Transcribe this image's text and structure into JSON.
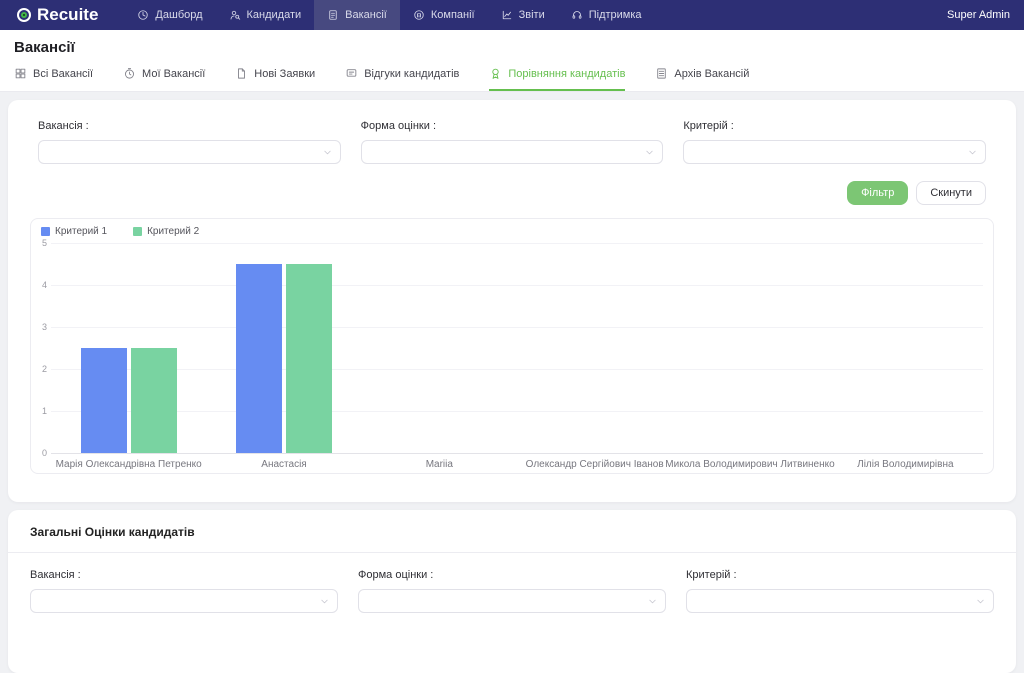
{
  "navbar": {
    "logo_text": "Recuite",
    "user": "Super Admin",
    "items": [
      {
        "key": "dashboard",
        "label": "Дашборд",
        "icon": "dashboard-icon",
        "active": false
      },
      {
        "key": "candidates",
        "label": "Кандидати",
        "icon": "candidates-icon",
        "active": false
      },
      {
        "key": "vacancies",
        "label": "Вакансії",
        "icon": "vacancies-icon",
        "active": true
      },
      {
        "key": "companies",
        "label": "Компанії",
        "icon": "companies-icon",
        "active": false
      },
      {
        "key": "reports",
        "label": "Звіти",
        "icon": "reports-icon",
        "active": false
      },
      {
        "key": "support",
        "label": "Підтримка",
        "icon": "support-icon",
        "active": false
      }
    ]
  },
  "page": {
    "title": "Вакансії"
  },
  "tabs": [
    {
      "key": "all-vacancies",
      "label": "Всі Вакансії",
      "icon": "grid-icon",
      "active": false
    },
    {
      "key": "my-vacancies",
      "label": "Мої Вакансії",
      "icon": "clock-icon",
      "active": false
    },
    {
      "key": "new-applications",
      "label": "Нові Заявки",
      "icon": "file-icon",
      "active": false
    },
    {
      "key": "candidate-feedback",
      "label": "Відгуки кандидатів",
      "icon": "feedback-icon",
      "active": false
    },
    {
      "key": "candidate-comparison",
      "label": "Порівняння кандидатів",
      "icon": "badge-icon",
      "active": true
    },
    {
      "key": "vacancy-archive",
      "label": "Архів Вакансій",
      "icon": "archive-icon",
      "active": false
    }
  ],
  "filters": {
    "fields": [
      {
        "key": "vacancy",
        "label": "Вакансія :",
        "value": ""
      },
      {
        "key": "evaluation-form",
        "label": "Форма оцінки :",
        "value": ""
      },
      {
        "key": "criteria",
        "label": "Критерій :",
        "value": ""
      }
    ],
    "filter_button": "Фільтр",
    "reset_button": "Скинути"
  },
  "chart_data": {
    "type": "bar",
    "title": "",
    "categories": [
      "Марія Олександрівна Петренко",
      "Анастасія",
      "Mariia",
      "Олександр Сергійович Іванов",
      "Микола Володимирович Литвиненко",
      "Лілія Володимирівна"
    ],
    "series": [
      {
        "name": "Критерий 1",
        "color": "#668cf2",
        "values": [
          2.5,
          4.5,
          0,
          0,
          0,
          0
        ]
      },
      {
        "name": "Критерий 2",
        "color": "#79d3a1",
        "values": [
          2.5,
          4.5,
          0,
          0,
          0,
          0
        ]
      }
    ],
    "ylim": [
      0,
      5
    ],
    "yticks": [
      0,
      1,
      2,
      3,
      4,
      5
    ],
    "grid": true,
    "legend_position": "top-left"
  },
  "section2": {
    "title": "Загальні Оцінки кандидатів",
    "fields": [
      {
        "key": "vacancy",
        "label": "Вакансія :",
        "value": ""
      },
      {
        "key": "evaluation-form",
        "label": "Форма оцінки :",
        "value": ""
      },
      {
        "key": "criteria",
        "label": "Критерій :",
        "value": ""
      }
    ]
  },
  "colors": {
    "navbar_bg": "#2d2f75",
    "navbar_active_bg": "#474980",
    "logo_green": "#43b649",
    "accent_green": "#7cc674",
    "tab_active_green": "#65bf4e",
    "bar_blue": "#668cf2",
    "bar_green": "#79d3a1"
  }
}
